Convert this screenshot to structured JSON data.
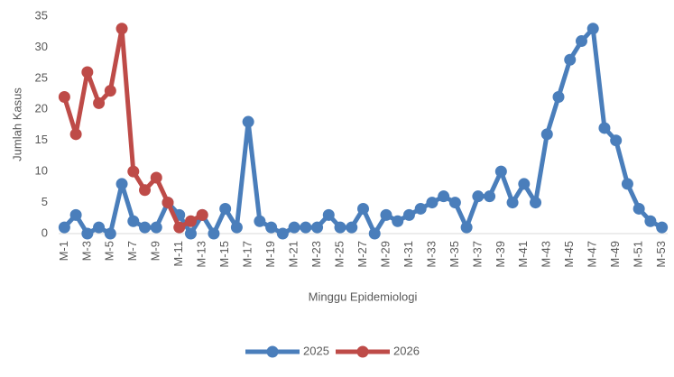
{
  "chart_data": {
    "type": "line",
    "xlabel": "Minggu Epidemiologi",
    "ylabel": "Jumlah Kasus",
    "categories": [
      "M-1",
      null,
      "M-3",
      null,
      "M-5",
      null,
      "M-7",
      null,
      "M-9",
      null,
      "M-11",
      null,
      "M-13",
      null,
      "M-15",
      null,
      "M-17",
      null,
      "M-19",
      null,
      "M-21",
      null,
      "M-23",
      null,
      "M-25",
      null,
      "M-27",
      null,
      "M-29",
      null,
      "M-31",
      null,
      "M-33",
      null,
      "M-35",
      null,
      "M-37",
      null,
      "M-39",
      null,
      "M-41",
      null,
      "M-43",
      null,
      "M-45",
      null,
      "M-47",
      null,
      "M-49",
      null,
      "M-51",
      null,
      "M-53"
    ],
    "series": [
      {
        "name": "2025",
        "color": "#4a7ebb",
        "values": [
          1,
          3,
          0,
          1,
          0,
          8,
          2,
          1,
          1,
          5,
          3,
          0,
          3,
          0,
          4,
          1,
          18,
          2,
          1,
          0,
          1,
          1,
          1,
          3,
          1,
          1,
          4,
          0,
          3,
          2,
          3,
          4,
          5,
          6,
          5,
          1,
          6,
          6,
          10,
          5,
          8,
          5,
          16,
          22,
          28,
          31,
          33,
          17,
          15,
          8,
          4,
          2,
          1
        ]
      },
      {
        "name": "2026",
        "color": "#be4b48",
        "values": [
          22,
          16,
          26,
          21,
          23,
          33,
          10,
          7,
          9,
          5,
          1,
          2,
          3,
          null,
          null,
          null,
          null,
          null,
          null,
          null,
          null,
          null,
          null,
          null,
          null,
          null,
          null,
          null,
          null,
          null,
          null,
          null,
          null,
          null,
          null,
          null,
          null,
          null,
          null,
          null,
          null,
          null,
          null,
          null,
          null,
          null,
          null,
          null,
          null,
          null,
          null,
          null,
          null
        ]
      }
    ],
    "ylim": [
      0,
      35
    ],
    "yticks": [
      0,
      5,
      10,
      15,
      20,
      25,
      30,
      35
    ],
    "legend": "bottom"
  }
}
